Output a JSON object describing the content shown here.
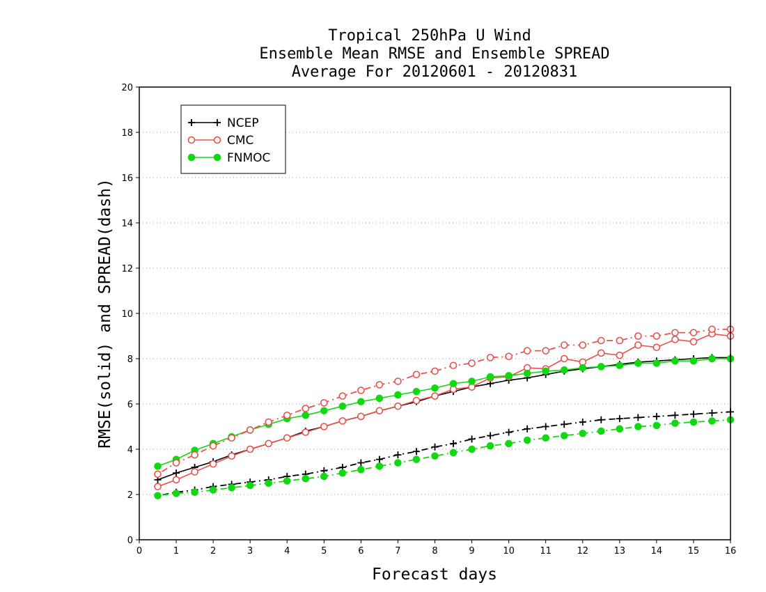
{
  "chart_data": {
    "type": "line",
    "title": [
      "Tropical 250hPa U Wind",
      "Ensemble Mean RMSE and Ensemble SPREAD",
      "Average For 20120601 - 20120831"
    ],
    "xlabel": "Forecast days",
    "ylabel": "RMSE(solid) and SPREAD(dash)",
    "xlim": [
      0,
      16
    ],
    "ylim": [
      0,
      20
    ],
    "xticks": [
      "0",
      "1",
      "2",
      "3",
      "4",
      "5",
      "6",
      "7",
      "8",
      "9",
      "10",
      "11",
      "12",
      "13",
      "14",
      "15",
      "16"
    ],
    "yticks": [
      "0",
      "2",
      "4",
      "6",
      "8",
      "10",
      "12",
      "14",
      "16",
      "18",
      "20"
    ],
    "grid": "horizontal dotted",
    "legend_position": "top-left",
    "x": [
      0.5,
      1,
      1.5,
      2,
      2.5,
      3,
      3.5,
      4,
      4.5,
      5,
      5.5,
      6,
      6.5,
      7,
      7.5,
      8,
      8.5,
      9,
      9.5,
      10,
      10.5,
      11,
      11.5,
      12,
      12.5,
      13,
      13.5,
      14,
      14.5,
      15,
      15.5,
      16
    ],
    "series": [
      {
        "name": "NCEP",
        "metric": "RMSE",
        "style": "solid",
        "marker": "plus",
        "color": "#000000",
        "values": [
          2.65,
          2.95,
          3.2,
          3.45,
          3.75,
          4.0,
          4.25,
          4.5,
          4.8,
          5.0,
          5.25,
          5.45,
          5.7,
          5.9,
          6.1,
          6.35,
          6.55,
          6.75,
          6.9,
          7.05,
          7.15,
          7.3,
          7.45,
          7.55,
          7.65,
          7.75,
          7.85,
          7.9,
          7.95,
          8.0,
          8.05,
          8.05
        ]
      },
      {
        "name": "CMC",
        "metric": "RMSE",
        "style": "solid",
        "marker": "open-circle",
        "color": "#e8504a",
        "values": [
          2.35,
          2.65,
          3.0,
          3.35,
          3.7,
          4.0,
          4.25,
          4.5,
          4.75,
          5.0,
          5.25,
          5.45,
          5.7,
          5.9,
          6.15,
          6.35,
          6.65,
          6.75,
          7.15,
          7.2,
          7.6,
          7.55,
          8.0,
          7.85,
          8.25,
          8.15,
          8.6,
          8.5,
          8.85,
          8.75,
          9.1,
          9.0
        ]
      },
      {
        "name": "FNMOC",
        "metric": "RMSE",
        "style": "solid",
        "marker": "filled-circle",
        "color": "#12d812",
        "values": [
          3.25,
          3.55,
          3.95,
          4.25,
          4.55,
          4.85,
          5.1,
          5.35,
          5.5,
          5.7,
          5.9,
          6.1,
          6.25,
          6.4,
          6.55,
          6.7,
          6.9,
          7.0,
          7.2,
          7.25,
          7.35,
          7.45,
          7.5,
          7.6,
          7.65,
          7.7,
          7.8,
          7.8,
          7.9,
          7.9,
          8.0,
          8.0
        ]
      },
      {
        "name": "NCEP",
        "metric": "SPREAD",
        "style": "dash",
        "marker": "plus",
        "color": "#000000",
        "values": [
          1.95,
          2.1,
          2.2,
          2.35,
          2.45,
          2.55,
          2.65,
          2.8,
          2.9,
          3.05,
          3.2,
          3.4,
          3.55,
          3.75,
          3.9,
          4.1,
          4.25,
          4.45,
          4.6,
          4.75,
          4.9,
          5.0,
          5.1,
          5.2,
          5.3,
          5.35,
          5.4,
          5.45,
          5.5,
          5.55,
          5.6,
          5.65
        ]
      },
      {
        "name": "CMC",
        "metric": "SPREAD",
        "style": "dash",
        "marker": "open-circle",
        "color": "#e8504a",
        "values": [
          2.9,
          3.4,
          3.75,
          4.15,
          4.5,
          4.85,
          5.2,
          5.5,
          5.8,
          6.05,
          6.35,
          6.6,
          6.85,
          7.0,
          7.3,
          7.45,
          7.7,
          7.8,
          8.05,
          8.1,
          8.35,
          8.35,
          8.6,
          8.6,
          8.8,
          8.8,
          9.0,
          9.0,
          9.15,
          9.15,
          9.3,
          9.3
        ]
      },
      {
        "name": "FNMOC",
        "metric": "SPREAD",
        "style": "dash",
        "marker": "filled-circle",
        "color": "#12d812",
        "values": [
          1.95,
          2.05,
          2.1,
          2.2,
          2.3,
          2.4,
          2.5,
          2.6,
          2.7,
          2.8,
          2.95,
          3.1,
          3.25,
          3.4,
          3.55,
          3.7,
          3.85,
          4.0,
          4.15,
          4.25,
          4.4,
          4.5,
          4.6,
          4.7,
          4.8,
          4.9,
          5.0,
          5.05,
          5.15,
          5.2,
          5.25,
          5.3
        ]
      }
    ],
    "legend": [
      {
        "label": "NCEP",
        "marker": "plus",
        "color": "#000000"
      },
      {
        "label": "CMC",
        "marker": "open-circle",
        "color": "#e8504a"
      },
      {
        "label": "FNMOC",
        "marker": "filled-circle",
        "color": "#12d812"
      }
    ]
  }
}
